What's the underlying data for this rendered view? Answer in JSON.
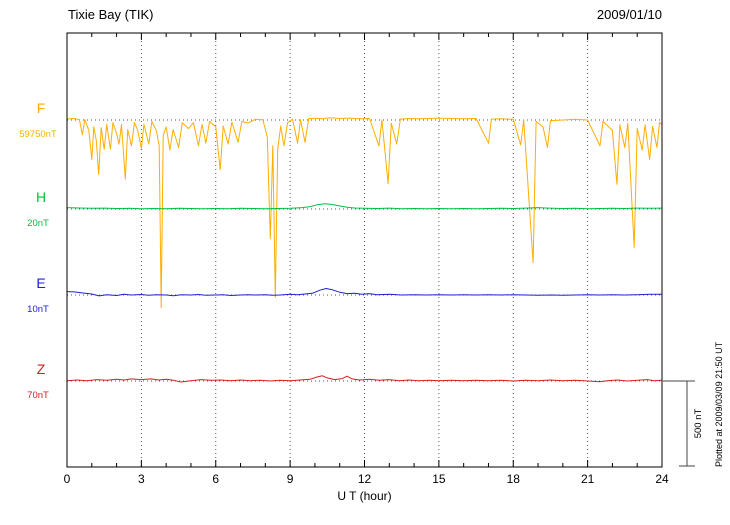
{
  "header": {
    "title": "Tixie Bay (TIK)",
    "date": "2009/01/10"
  },
  "chart_data": {
    "type": "line",
    "title": "Tixie Bay (TIK)",
    "subtitle": "2009/01/10",
    "xlabel": "U T (hour)",
    "x_range": [
      0,
      24
    ],
    "x_major_ticks": [
      0,
      3,
      6,
      9,
      12,
      15,
      18,
      21,
      24
    ],
    "x_minor_step": 1,
    "grid": "vertical-dotted-at-major-ticks",
    "scale_bar": {
      "label": "500 nT",
      "nT": 500
    },
    "note": "Plotted at 2009/03/09 21:50 UT",
    "series": [
      {
        "name": "F",
        "baseline_label": "59750nT",
        "baseline_value_nT": 59750,
        "color": "#FFAE00",
        "points": [
          [
            0,
            6
          ],
          [
            0.3,
            9
          ],
          [
            0.5,
            2
          ],
          [
            0.62,
            -86
          ],
          [
            0.72,
            3
          ],
          [
            0.88,
            -60
          ],
          [
            1.0,
            -230
          ],
          [
            1.08,
            -40
          ],
          [
            1.18,
            -120
          ],
          [
            1.28,
            -316
          ],
          [
            1.38,
            -45
          ],
          [
            1.5,
            -170
          ],
          [
            1.6,
            -25
          ],
          [
            1.75,
            -170
          ],
          [
            1.85,
            -15
          ],
          [
            2.0,
            -80
          ],
          [
            2.1,
            -140
          ],
          [
            2.2,
            -25
          ],
          [
            2.35,
            -345
          ],
          [
            2.45,
            -55
          ],
          [
            2.6,
            -150
          ],
          [
            2.72,
            -15
          ],
          [
            2.85,
            -60
          ],
          [
            3.0,
            -165
          ],
          [
            3.1,
            -25
          ],
          [
            3.3,
            -140
          ],
          [
            3.42,
            -8
          ],
          [
            3.6,
            -60
          ],
          [
            3.72,
            -150
          ],
          [
            3.8,
            -1090
          ],
          [
            3.88,
            -90
          ],
          [
            4.0,
            -40
          ],
          [
            4.15,
            -175
          ],
          [
            4.28,
            -55
          ],
          [
            4.5,
            -160
          ],
          [
            4.65,
            -15
          ],
          [
            4.9,
            -50
          ],
          [
            5.1,
            -15
          ],
          [
            5.3,
            -150
          ],
          [
            5.45,
            -25
          ],
          [
            5.6,
            -135
          ],
          [
            5.75,
            -8
          ],
          [
            6.0,
            -40
          ],
          [
            6.18,
            -290
          ],
          [
            6.3,
            -35
          ],
          [
            6.5,
            -140
          ],
          [
            6.65,
            -12
          ],
          [
            6.9,
            -130
          ],
          [
            7.05,
            -8
          ],
          [
            7.3,
            -18
          ],
          [
            7.6,
            4
          ],
          [
            7.9,
            2
          ],
          [
            8.08,
            -100
          ],
          [
            8.2,
            -690
          ],
          [
            8.3,
            -150
          ],
          [
            8.4,
            -1030
          ],
          [
            8.5,
            -170
          ],
          [
            8.62,
            -35
          ],
          [
            8.75,
            -150
          ],
          [
            8.9,
            -15
          ],
          [
            9.1,
            4
          ],
          [
            9.3,
            -135
          ],
          [
            9.42,
            2
          ],
          [
            9.6,
            -130
          ],
          [
            9.75,
            8
          ],
          [
            10.0,
            10
          ],
          [
            10.3,
            7
          ],
          [
            10.6,
            13
          ],
          [
            11.0,
            9
          ],
          [
            11.4,
            11
          ],
          [
            11.8,
            7
          ],
          [
            12.2,
            9
          ],
          [
            12.58,
            -150
          ],
          [
            12.7,
            0
          ],
          [
            12.95,
            -370
          ],
          [
            13.08,
            -18
          ],
          [
            13.3,
            -140
          ],
          [
            13.45,
            5
          ],
          [
            13.8,
            9
          ],
          [
            14.2,
            7
          ],
          [
            14.6,
            9
          ],
          [
            15.0,
            11
          ],
          [
            15.5,
            9
          ],
          [
            16.0,
            7
          ],
          [
            16.5,
            9
          ],
          [
            17.0,
            -135
          ],
          [
            17.12,
            5
          ],
          [
            17.5,
            7
          ],
          [
            18.0,
            4
          ],
          [
            18.3,
            -145
          ],
          [
            18.42,
            0
          ],
          [
            18.8,
            -830
          ],
          [
            18.92,
            -8
          ],
          [
            19.2,
            -40
          ],
          [
            19.38,
            -160
          ],
          [
            19.5,
            -4
          ],
          [
            20.0,
            0
          ],
          [
            20.5,
            4
          ],
          [
            21.0,
            0
          ],
          [
            21.5,
            -150
          ],
          [
            21.62,
            -8
          ],
          [
            22.0,
            -60
          ],
          [
            22.18,
            -374
          ],
          [
            22.3,
            -28
          ],
          [
            22.5,
            -160
          ],
          [
            22.62,
            -18
          ],
          [
            22.88,
            -740
          ],
          [
            23.0,
            -48
          ],
          [
            23.2,
            -175
          ],
          [
            23.32,
            -28
          ],
          [
            23.5,
            -230
          ],
          [
            23.62,
            -38
          ],
          [
            23.8,
            -160
          ],
          [
            23.9,
            -15
          ],
          [
            24,
            -25
          ]
        ]
      },
      {
        "name": "H",
        "baseline_label": "20nT",
        "baseline_value_nT": 20,
        "color": "#00C040",
        "points": [
          [
            0,
            8
          ],
          [
            0.5,
            6
          ],
          [
            1,
            4
          ],
          [
            1.5,
            5
          ],
          [
            2,
            3
          ],
          [
            2.5,
            4
          ],
          [
            3,
            2
          ],
          [
            3.5,
            3
          ],
          [
            4,
            2
          ],
          [
            4.5,
            4
          ],
          [
            5,
            3
          ],
          [
            5.5,
            2
          ],
          [
            6,
            3
          ],
          [
            6.5,
            2
          ],
          [
            7,
            4
          ],
          [
            7.5,
            3
          ],
          [
            8,
            2
          ],
          [
            8.5,
            3
          ],
          [
            9,
            4
          ],
          [
            9.5,
            8
          ],
          [
            9.8,
            14
          ],
          [
            10.1,
            25
          ],
          [
            10.4,
            30
          ],
          [
            10.7,
            26
          ],
          [
            11.0,
            18
          ],
          [
            11.3,
            10
          ],
          [
            11.6,
            6
          ],
          [
            12,
            4
          ],
          [
            12.5,
            3
          ],
          [
            13,
            5
          ],
          [
            13.5,
            2
          ],
          [
            14,
            3
          ],
          [
            14.5,
            2
          ],
          [
            15,
            3
          ],
          [
            15.5,
            2
          ],
          [
            16,
            3
          ],
          [
            16.5,
            2
          ],
          [
            17,
            3
          ],
          [
            17.5,
            4
          ],
          [
            18,
            3
          ],
          [
            18.5,
            5
          ],
          [
            19,
            8
          ],
          [
            19.3,
            6
          ],
          [
            19.6,
            4
          ],
          [
            20,
            3
          ],
          [
            20.5,
            4
          ],
          [
            21,
            2
          ],
          [
            21.5,
            3
          ],
          [
            22,
            4
          ],
          [
            22.5,
            3
          ],
          [
            23,
            5
          ],
          [
            23.5,
            4
          ],
          [
            24,
            5
          ]
        ]
      },
      {
        "name": "E",
        "baseline_label": "10nT",
        "baseline_value_nT": 10,
        "color": "#2020D0",
        "points": [
          [
            0,
            20
          ],
          [
            0.3,
            18
          ],
          [
            0.6,
            12
          ],
          [
            1,
            6
          ],
          [
            1.3,
            -5
          ],
          [
            1.6,
            2
          ],
          [
            2,
            -3
          ],
          [
            2.3,
            4
          ],
          [
            2.6,
            0
          ],
          [
            3,
            3
          ],
          [
            3.3,
            -2
          ],
          [
            3.6,
            2
          ],
          [
            4,
            0
          ],
          [
            4.3,
            -4
          ],
          [
            4.6,
            2
          ],
          [
            5,
            0
          ],
          [
            5.3,
            3
          ],
          [
            5.6,
            -2
          ],
          [
            6,
            0
          ],
          [
            6.3,
            2
          ],
          [
            6.6,
            -3
          ],
          [
            7,
            0
          ],
          [
            7.3,
            2
          ],
          [
            7.6,
            0
          ],
          [
            8,
            2
          ],
          [
            8.3,
            -2
          ],
          [
            8.6,
            0
          ],
          [
            9,
            4
          ],
          [
            9.3,
            2
          ],
          [
            9.6,
            6
          ],
          [
            9.9,
            10
          ],
          [
            10.2,
            28
          ],
          [
            10.45,
            38
          ],
          [
            10.7,
            30
          ],
          [
            11,
            16
          ],
          [
            11.3,
            8
          ],
          [
            11.6,
            10
          ],
          [
            11.9,
            4
          ],
          [
            12.2,
            8
          ],
          [
            12.5,
            2
          ],
          [
            13,
            4
          ],
          [
            13.5,
            0
          ],
          [
            14,
            2
          ],
          [
            14.5,
            0
          ],
          [
            15,
            2
          ],
          [
            15.5,
            0
          ],
          [
            16,
            2
          ],
          [
            16.5,
            0
          ],
          [
            17,
            2
          ],
          [
            17.5,
            0
          ],
          [
            18,
            2
          ],
          [
            18.5,
            0
          ],
          [
            19,
            -2
          ],
          [
            19.5,
            0
          ],
          [
            20,
            -2
          ],
          [
            20.5,
            0
          ],
          [
            21,
            2
          ],
          [
            21.5,
            0
          ],
          [
            22,
            2
          ],
          [
            22.5,
            0
          ],
          [
            23,
            2
          ],
          [
            23.5,
            4
          ],
          [
            24,
            4
          ]
        ]
      },
      {
        "name": "Z",
        "baseline_label": "70nT",
        "baseline_value_nT": 70,
        "color": "#D02020",
        "points": [
          [
            0,
            2
          ],
          [
            0.4,
            6
          ],
          [
            0.8,
            2
          ],
          [
            1.2,
            8
          ],
          [
            1.6,
            4
          ],
          [
            2,
            10
          ],
          [
            2.3,
            6
          ],
          [
            2.6,
            12
          ],
          [
            3,
            8
          ],
          [
            3.4,
            12
          ],
          [
            3.7,
            6
          ],
          [
            4,
            10
          ],
          [
            4.3,
            4
          ],
          [
            4.6,
            -6
          ],
          [
            5,
            2
          ],
          [
            5.4,
            8
          ],
          [
            5.8,
            4
          ],
          [
            6.2,
            6
          ],
          [
            6.6,
            2
          ],
          [
            7,
            6
          ],
          [
            7.4,
            2
          ],
          [
            7.8,
            4
          ],
          [
            8.2,
            0
          ],
          [
            8.6,
            4
          ],
          [
            9,
            2
          ],
          [
            9.4,
            6
          ],
          [
            9.8,
            10
          ],
          [
            10.1,
            24
          ],
          [
            10.3,
            30
          ],
          [
            10.5,
            18
          ],
          [
            10.8,
            8
          ],
          [
            11.1,
            14
          ],
          [
            11.3,
            28
          ],
          [
            11.5,
            12
          ],
          [
            11.8,
            6
          ],
          [
            12.2,
            10
          ],
          [
            12.6,
            4
          ],
          [
            13,
            8
          ],
          [
            13.4,
            2
          ],
          [
            13.8,
            6
          ],
          [
            14.2,
            2
          ],
          [
            14.6,
            4
          ],
          [
            15,
            2
          ],
          [
            15.5,
            4
          ],
          [
            16,
            2
          ],
          [
            16.5,
            4
          ],
          [
            17,
            2
          ],
          [
            17.5,
            4
          ],
          [
            18,
            0
          ],
          [
            18.5,
            4
          ],
          [
            19,
            2
          ],
          [
            19.5,
            6
          ],
          [
            20,
            2
          ],
          [
            20.5,
            4
          ],
          [
            21,
            0
          ],
          [
            21.5,
            -4
          ],
          [
            21.8,
            2
          ],
          [
            22.2,
            6
          ],
          [
            22.6,
            0
          ],
          [
            23,
            4
          ],
          [
            23.4,
            8
          ],
          [
            23.7,
            2
          ],
          [
            24,
            4
          ]
        ]
      }
    ]
  }
}
